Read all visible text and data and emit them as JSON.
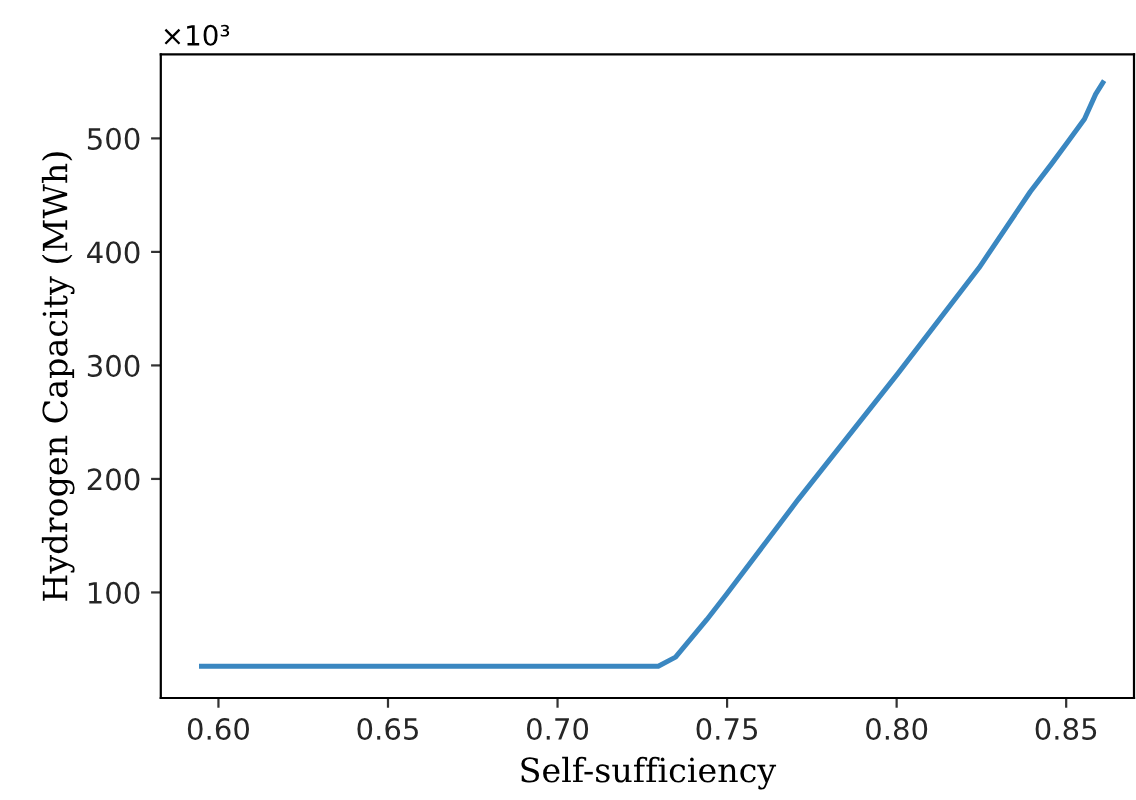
{
  "chart_data": {
    "type": "line",
    "xlabel": "Self-sufficiency",
    "ylabel": "Hydrogen Capacity (MWh)",
    "annotations": [
      "×10³"
    ],
    "series": [
      {
        "color": "#3a87c1",
        "x": [
          0.595,
          0.7297,
          0.7348,
          0.744,
          0.75,
          0.771,
          0.8004,
          0.8243,
          0.8394,
          0.8458,
          0.8505,
          0.8554,
          0.8587,
          0.8608
        ],
        "values": [
          35,
          35,
          43,
          76,
          99,
          182,
          293,
          386,
          453,
          478,
          497,
          517,
          539,
          549
        ]
      }
    ],
    "xlim": [
      0.583,
      0.87
    ],
    "ylim": [
      7,
      574
    ],
    "xticks": [
      {
        "value": 0.6,
        "label": "0.60"
      },
      {
        "value": 0.65,
        "label": "0.65"
      },
      {
        "value": 0.7,
        "label": "0.70"
      },
      {
        "value": 0.75,
        "label": "0.75"
      },
      {
        "value": 0.8,
        "label": "0.80"
      },
      {
        "value": 0.85,
        "label": "0.85"
      }
    ],
    "yticks": [
      100,
      200,
      300,
      400,
      500
    ],
    "grid": false,
    "legend": false,
    "marker": "none",
    "line_style": "solid"
  }
}
